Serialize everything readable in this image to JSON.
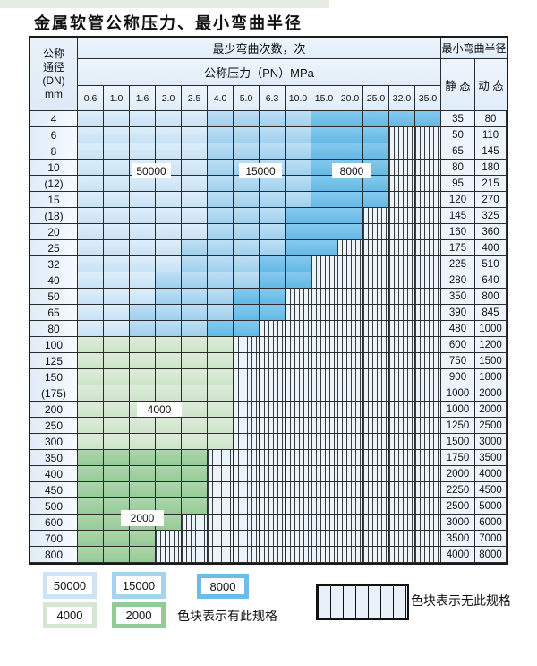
{
  "title": "金属软管公称压力、最小弯曲半径",
  "header": {
    "dn_lines": [
      "公称",
      "通径",
      "(DN)",
      "mm"
    ],
    "bend_times_label": "最少弯曲次数，次",
    "pressure_label": "公称压力（PN）MPa",
    "pressures": [
      "0.6",
      "1.0",
      "1.6",
      "2.0",
      "2.5",
      "4.0",
      "5.0",
      "6.3",
      "10.0",
      "15.0",
      "20.0",
      "25.0",
      "32.0",
      "35.0"
    ],
    "radius_label": "最小弯曲半径",
    "static_label": "静 态",
    "dynamic_label": "动 态"
  },
  "cycles": {
    "c50000": "50000",
    "c15000": "15000",
    "c8000": "8000",
    "c4000": "4000",
    "c2000": "2000"
  },
  "legend": {
    "available_text": "色块表示有此规格",
    "unavailable_text": "色块表示无此规格"
  },
  "colors": {
    "cycles_50000": "#cce4f7",
    "cycles_15000": "#a5d4f0",
    "cycles_8000": "#6bbde8",
    "cycles_4000": "#d4e7d0",
    "cycles_2000": "#93ca96",
    "no_spec_bg": "#ebf3fb"
  },
  "table": {
    "cell_code_map": {
      "L": "50000",
      "M": "15000",
      "D": "8000",
      "G": "4000",
      "g": "2000",
      "H": "no-spec"
    },
    "rows": [
      {
        "dn": "4",
        "cells": "LLLLLMMMMDDDDD",
        "static": "35",
        "dynamic": "80"
      },
      {
        "dn": "6",
        "cells": "LLLLLMMMMDDDHH",
        "static": "50",
        "dynamic": "110"
      },
      {
        "dn": "8",
        "cells": "LLLLLMMMMDDDHH",
        "static": "65",
        "dynamic": "145"
      },
      {
        "dn": "10",
        "cells": "LLLLLMMMMDDDHH",
        "static": "80",
        "dynamic": "180"
      },
      {
        "dn": "(12)",
        "cells": "LLLLLMMMMDDDHH",
        "static": "95",
        "dynamic": "215"
      },
      {
        "dn": "15",
        "cells": "LLLLLMMMMDDDHH",
        "static": "120",
        "dynamic": "270"
      },
      {
        "dn": "(18)",
        "cells": "LLLLLMMMDDDHHH",
        "static": "145",
        "dynamic": "325"
      },
      {
        "dn": "20",
        "cells": "LLLLLMMMDDDHHH",
        "static": "160",
        "dynamic": "360"
      },
      {
        "dn": "25",
        "cells": "LLLLMMMMDDHHHH",
        "static": "175",
        "dynamic": "400"
      },
      {
        "dn": "32",
        "cells": "LLLLMMMDDHHHHH",
        "static": "225",
        "dynamic": "510"
      },
      {
        "dn": "40",
        "cells": "LLLMMMMDDHHHHH",
        "static": "280",
        "dynamic": "640"
      },
      {
        "dn": "50",
        "cells": "LLLMMMDDHHHHHH",
        "static": "350",
        "dynamic": "800"
      },
      {
        "dn": "65",
        "cells": "LLMMMMDDHHHHHH",
        "static": "390",
        "dynamic": "845"
      },
      {
        "dn": "80",
        "cells": "LLMMMDDHHHHHHH",
        "static": "480",
        "dynamic": "1000"
      },
      {
        "dn": "100",
        "cells": "GGGGGGHHHHHHHH",
        "static": "600",
        "dynamic": "1200"
      },
      {
        "dn": "125",
        "cells": "GGGGGGHHHHHHHH",
        "static": "750",
        "dynamic": "1500"
      },
      {
        "dn": "150",
        "cells": "GGGGGGHHHHHHHH",
        "static": "900",
        "dynamic": "1800"
      },
      {
        "dn": "(175)",
        "cells": "GGGGGGHHHHHHHH",
        "static": "1000",
        "dynamic": "2000"
      },
      {
        "dn": "200",
        "cells": "GGGGGGHHHHHHHH",
        "static": "1000",
        "dynamic": "2000"
      },
      {
        "dn": "250",
        "cells": "GGGGGGHHHHHHHH",
        "static": "1250",
        "dynamic": "2500"
      },
      {
        "dn": "300",
        "cells": "GGGGGGHHHHHHHH",
        "static": "1500",
        "dynamic": "3000"
      },
      {
        "dn": "350",
        "cells": "gggggHHHHHHHHH",
        "static": "1750",
        "dynamic": "3500"
      },
      {
        "dn": "400",
        "cells": "gggggHHHHHHHHH",
        "static": "2000",
        "dynamic": "4000"
      },
      {
        "dn": "450",
        "cells": "gggggHHHHHHHHH",
        "static": "2250",
        "dynamic": "4500"
      },
      {
        "dn": "500",
        "cells": "gggggHHHHHHHHH",
        "static": "2500",
        "dynamic": "5000"
      },
      {
        "dn": "600",
        "cells": "ggggHHHHHHHHHH",
        "static": "3000",
        "dynamic": "6000"
      },
      {
        "dn": "700",
        "cells": "gggHHHHHHHHHHH",
        "static": "3500",
        "dynamic": "7000"
      },
      {
        "dn": "800",
        "cells": "gggHHHHHHHHHHH",
        "static": "4000",
        "dynamic": "8000"
      }
    ]
  }
}
